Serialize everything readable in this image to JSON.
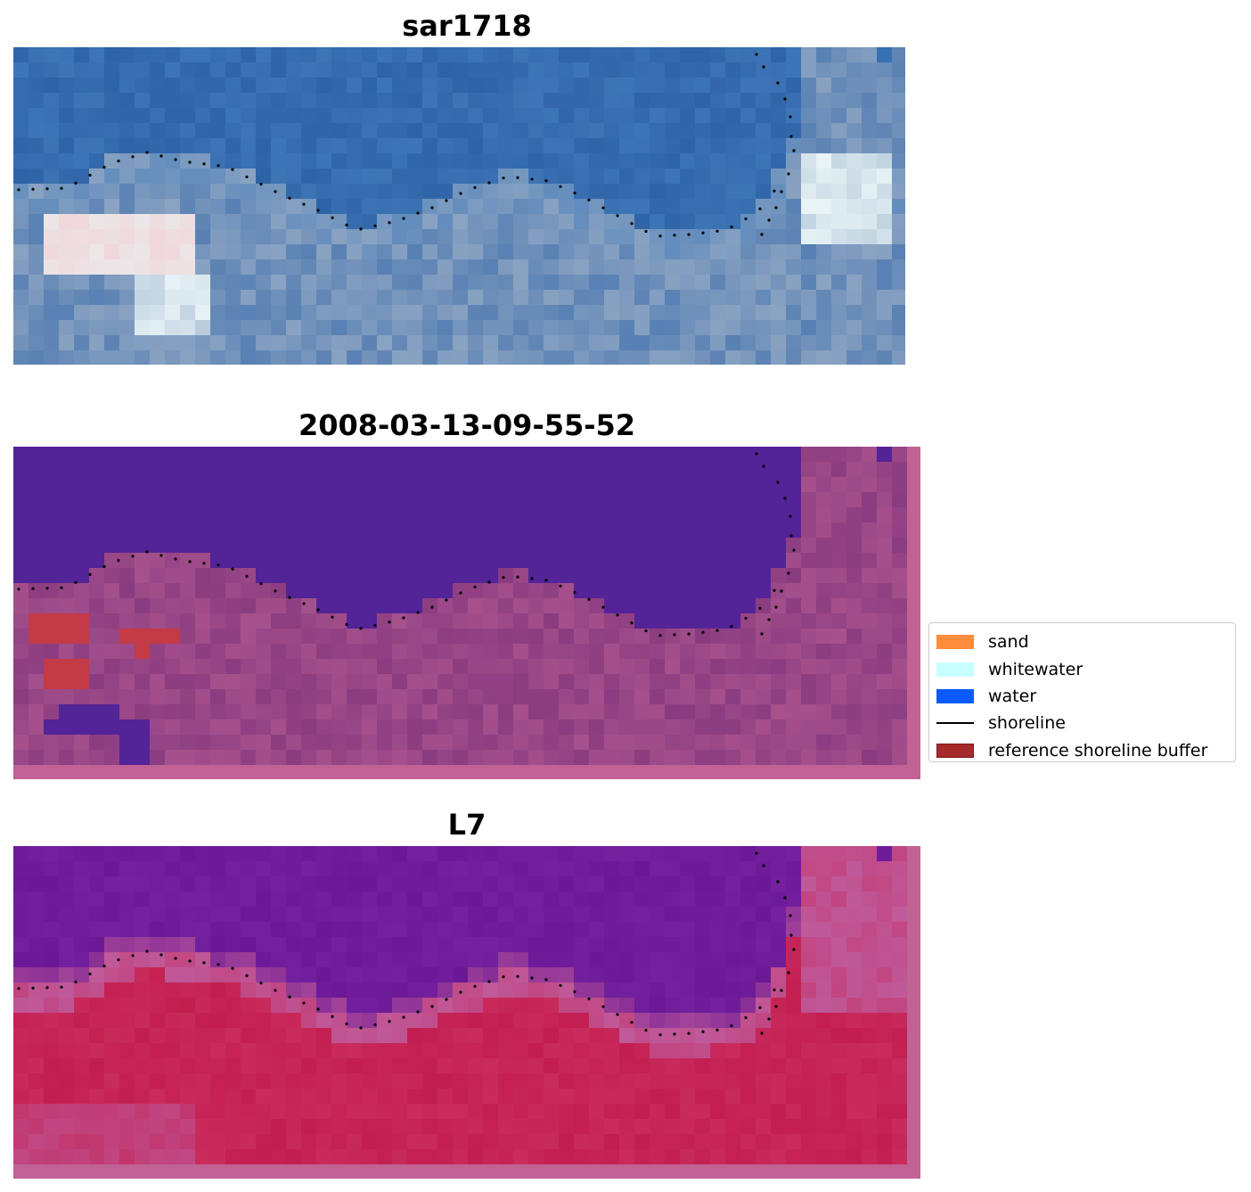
{
  "panels": [
    {
      "id": "rgb",
      "title": "sar1718"
    },
    {
      "id": "classified",
      "title": "2008-03-13-09-55-52"
    },
    {
      "id": "mndwi",
      "title": "L7"
    }
  ],
  "legend": {
    "items": [
      {
        "label": "sand",
        "type": "patch",
        "color": "#ff8c3c",
        "edge": "#ff8c3c"
      },
      {
        "label": "whitewater",
        "type": "patch",
        "color": "#c8ffff",
        "edge": "#c8ffff"
      },
      {
        "label": "water",
        "type": "patch",
        "color": "#0a5aff",
        "edge": "#0a5aff"
      },
      {
        "label": "shoreline",
        "type": "line",
        "color": "#000000"
      },
      {
        "label": "reference shoreline buffer",
        "type": "patch",
        "color": "#a52a2a",
        "edge": "#7a1b1b"
      }
    ]
  },
  "colors": {
    "rgb_deep": "#2e63a6",
    "rgb_blue": "#3f78b8",
    "rgb_land": "#8aa3c2",
    "rgb_white": "#e8f4f6",
    "rgb_pink": "#f0d6d8",
    "class_water": "#532398",
    "class_land": "#8a3c80",
    "class_land_light": "#b25a92",
    "class_buffer": "#c43a45",
    "class_border": "#c06294",
    "ndwi_water": "#6a1896",
    "ndwi_edge": "#c05a9a",
    "ndwi_land": "#c21e4f",
    "ndwi_border": "#c06294",
    "shoreline_dots": "#000000"
  }
}
